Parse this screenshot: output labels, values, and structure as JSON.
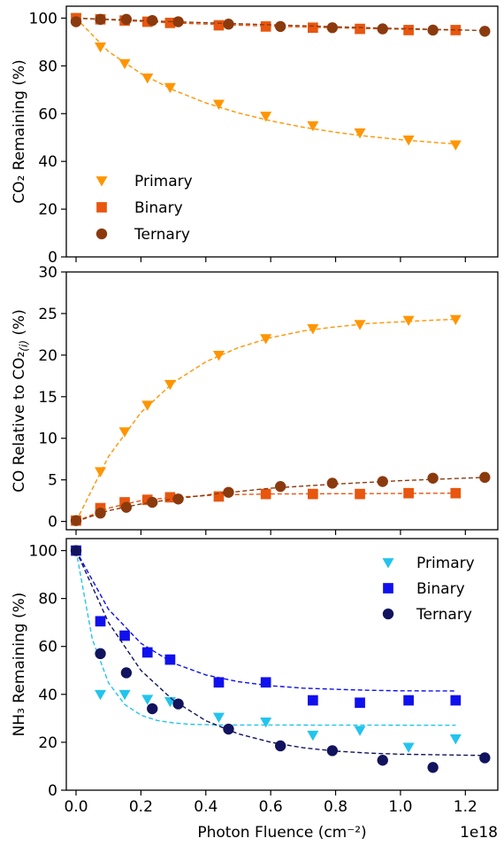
{
  "chart_data": [
    {
      "type": "scatter",
      "ylabel": "CO₂ Remaining (%)",
      "ylim": [
        0,
        105
      ],
      "yticks": [
        0,
        20,
        40,
        60,
        80,
        100
      ],
      "xlim": [
        -0.03,
        1.3
      ],
      "grid": false,
      "legend_position": "bottom-left",
      "series": [
        {
          "name": "Primary",
          "marker": "triangle-down",
          "color": "#ff9500",
          "x": [
            0.0,
            0.075,
            0.15,
            0.22,
            0.29,
            0.44,
            0.585,
            0.73,
            0.875,
            1.025,
            1.17
          ],
          "y": [
            100,
            88,
            81,
            75,
            71,
            64,
            59,
            55,
            52,
            49,
            47
          ],
          "fit": [
            [
              0.0,
              100
            ],
            [
              0.1,
              86.0
            ],
            [
              0.2,
              76.8
            ],
            [
              0.3,
              69.9
            ],
            [
              0.4,
              64.5
            ],
            [
              0.5,
              60.3
            ],
            [
              0.6,
              57.0
            ],
            [
              0.7,
              54.3
            ],
            [
              0.8,
              52.2
            ],
            [
              0.9,
              50.5
            ],
            [
              1.0,
              49.1
            ],
            [
              1.1,
              48.0
            ],
            [
              1.17,
              47.3
            ]
          ]
        },
        {
          "name": "Binary",
          "marker": "square",
          "color": "#e8560f",
          "x": [
            0.0,
            0.075,
            0.15,
            0.22,
            0.29,
            0.44,
            0.585,
            0.73,
            0.875,
            1.025,
            1.17
          ],
          "y": [
            100,
            99.5,
            99,
            98.5,
            98,
            97,
            96.5,
            96,
            95.5,
            95,
            95
          ],
          "fit": [
            [
              0.0,
              100
            ],
            [
              0.3,
              98.0
            ],
            [
              0.6,
              96.6
            ],
            [
              0.9,
              95.6
            ],
            [
              1.17,
              95.0
            ]
          ]
        },
        {
          "name": "Ternary",
          "marker": "circle",
          "color": "#8b3a0e",
          "x": [
            0.0,
            0.075,
            0.155,
            0.235,
            0.315,
            0.47,
            0.63,
            0.79,
            0.945,
            1.1,
            1.26
          ],
          "y": [
            98.5,
            99.5,
            99.5,
            99,
            98.5,
            97.5,
            96.5,
            96,
            95.5,
            95,
            94.5
          ],
          "fit": [
            [
              0.0,
              100
            ],
            [
              0.3,
              98.5
            ],
            [
              0.6,
              97.2
            ],
            [
              0.9,
              96.0
            ],
            [
              1.26,
              94.8
            ]
          ]
        }
      ]
    },
    {
      "type": "scatter",
      "ylabel": "CO Relative to CO₂",
      "ylabel_subscript": "(i)",
      "ylabel_unit": " (%)",
      "ylim": [
        -1,
        30
      ],
      "yticks": [
        0,
        5,
        10,
        15,
        20,
        25,
        30
      ],
      "xlim": [
        -0.03,
        1.3
      ],
      "grid": false,
      "series": [
        {
          "marker": "triangle-down",
          "color": "#ff9500",
          "x": [
            0.0,
            0.075,
            0.15,
            0.22,
            0.29,
            0.44,
            0.585,
            0.73,
            0.875,
            1.025,
            1.17
          ],
          "y": [
            0.1,
            6,
            10.8,
            14,
            16.5,
            20,
            22,
            23.2,
            23.7,
            24.2,
            24.3
          ],
          "fit": [
            [
              0.0,
              0
            ],
            [
              0.1,
              7.8
            ],
            [
              0.2,
              13.1
            ],
            [
              0.3,
              16.7
            ],
            [
              0.4,
              19.2
            ],
            [
              0.5,
              20.9
            ],
            [
              0.6,
              22.1
            ],
            [
              0.7,
              22.9
            ],
            [
              0.8,
              23.4
            ],
            [
              0.9,
              23.8
            ],
            [
              1.0,
              24.0
            ],
            [
              1.1,
              24.2
            ],
            [
              1.17,
              24.3
            ]
          ]
        },
        {
          "marker": "square",
          "color": "#e8560f",
          "x": [
            0.0,
            0.075,
            0.15,
            0.22,
            0.29,
            0.44,
            0.585,
            0.73,
            0.875,
            1.025,
            1.17
          ],
          "y": [
            0.1,
            1.6,
            2.3,
            2.6,
            2.9,
            3.0,
            3.3,
            3.3,
            3.3,
            3.4,
            3.4
          ],
          "fit": [
            [
              0.0,
              0
            ],
            [
              0.1,
              1.6
            ],
            [
              0.2,
              2.5
            ],
            [
              0.3,
              2.9
            ],
            [
              0.45,
              3.2
            ],
            [
              0.6,
              3.3
            ],
            [
              0.9,
              3.35
            ],
            [
              1.17,
              3.4
            ]
          ]
        },
        {
          "marker": "circle",
          "color": "#8b3a0e",
          "x": [
            0.0,
            0.075,
            0.155,
            0.235,
            0.315,
            0.47,
            0.63,
            0.79,
            0.945,
            1.1,
            1.26
          ],
          "y": [
            0.1,
            1.0,
            1.7,
            2.3,
            2.7,
            3.5,
            4.2,
            4.6,
            4.8,
            5.2,
            5.3
          ],
          "fit": [
            [
              0.0,
              0
            ],
            [
              0.1,
              1.3
            ],
            [
              0.2,
              2.1
            ],
            [
              0.3,
              2.7
            ],
            [
              0.45,
              3.4
            ],
            [
              0.6,
              4.0
            ],
            [
              0.8,
              4.5
            ],
            [
              1.0,
              4.9
            ],
            [
              1.26,
              5.3
            ]
          ]
        }
      ]
    },
    {
      "type": "scatter",
      "ylabel": "NH₃ Remaining (%)",
      "xlabel": "Photon Fluence (cm⁻²)",
      "x_offset_label": "1e18",
      "ylim": [
        0,
        105
      ],
      "yticks": [
        0,
        20,
        40,
        60,
        80,
        100
      ],
      "xlim": [
        -0.03,
        1.3
      ],
      "xticks": [
        0.0,
        0.2,
        0.4,
        0.6,
        0.8,
        1.0,
        1.2
      ],
      "xtick_labels": [
        "0.0",
        "0.2",
        "0.4",
        "0.6",
        "0.8",
        "1.0",
        "1.2"
      ],
      "grid": false,
      "legend_position": "top-right",
      "series": [
        {
          "name": "Primary",
          "marker": "triangle-down",
          "color": "#22c4ee",
          "x": [
            0.0,
            0.075,
            0.15,
            0.22,
            0.29,
            0.44,
            0.585,
            0.73,
            0.875,
            1.025,
            1.17
          ],
          "y": [
            100,
            40,
            40,
            38,
            37,
            30.5,
            28.5,
            23,
            25,
            18,
            21.5
          ],
          "fit": [
            [
              0.0,
              100
            ],
            [
              0.05,
              63.0
            ],
            [
              0.1,
              44.8
            ],
            [
              0.15,
              35.8
            ],
            [
              0.2,
              31.3
            ],
            [
              0.25,
              29.1
            ],
            [
              0.3,
              28.1
            ],
            [
              0.35,
              27.5
            ],
            [
              0.45,
              27.2
            ],
            [
              1.17,
              27.1
            ]
          ]
        },
        {
          "name": "Binary",
          "marker": "square",
          "color": "#1010ee",
          "x": [
            0.0,
            0.075,
            0.15,
            0.22,
            0.29,
            0.44,
            0.585,
            0.73,
            0.875,
            1.025,
            1.17
          ],
          "y": [
            100,
            70.5,
            64.5,
            57.5,
            54.5,
            45,
            45,
            37.5,
            36.5,
            37.5,
            37.5
          ],
          "fit": [
            [
              0.0,
              100
            ],
            [
              0.1,
              75.5
            ],
            [
              0.2,
              61.3
            ],
            [
              0.3,
              53.0
            ],
            [
              0.4,
              48.1
            ],
            [
              0.5,
              45.3
            ],
            [
              0.6,
              43.6
            ],
            [
              0.7,
              42.6
            ],
            [
              0.8,
              42.1
            ],
            [
              0.9,
              41.7
            ],
            [
              1.0,
              41.5
            ],
            [
              1.17,
              41.4
            ]
          ]
        },
        {
          "name": "Ternary",
          "marker": "circle",
          "color": "#12135e",
          "x": [
            0.0,
            0.075,
            0.155,
            0.235,
            0.315,
            0.47,
            0.63,
            0.79,
            0.945,
            1.1,
            1.26
          ],
          "y": [
            100,
            57,
            49,
            34,
            36,
            25.5,
            18.5,
            16.5,
            12.5,
            9.5,
            13.5
          ],
          "fit": [
            [
              0.0,
              100
            ],
            [
              0.1,
              70.0
            ],
            [
              0.2,
              50.0
            ],
            [
              0.3,
              37.5
            ],
            [
              0.4,
              29.0
            ],
            [
              0.5,
              23.5
            ],
            [
              0.6,
              20.0
            ],
            [
              0.7,
              17.7
            ],
            [
              0.8,
              16.3
            ],
            [
              0.9,
              15.5
            ],
            [
              1.0,
              15.0
            ],
            [
              1.26,
              14.5
            ]
          ]
        }
      ]
    }
  ]
}
